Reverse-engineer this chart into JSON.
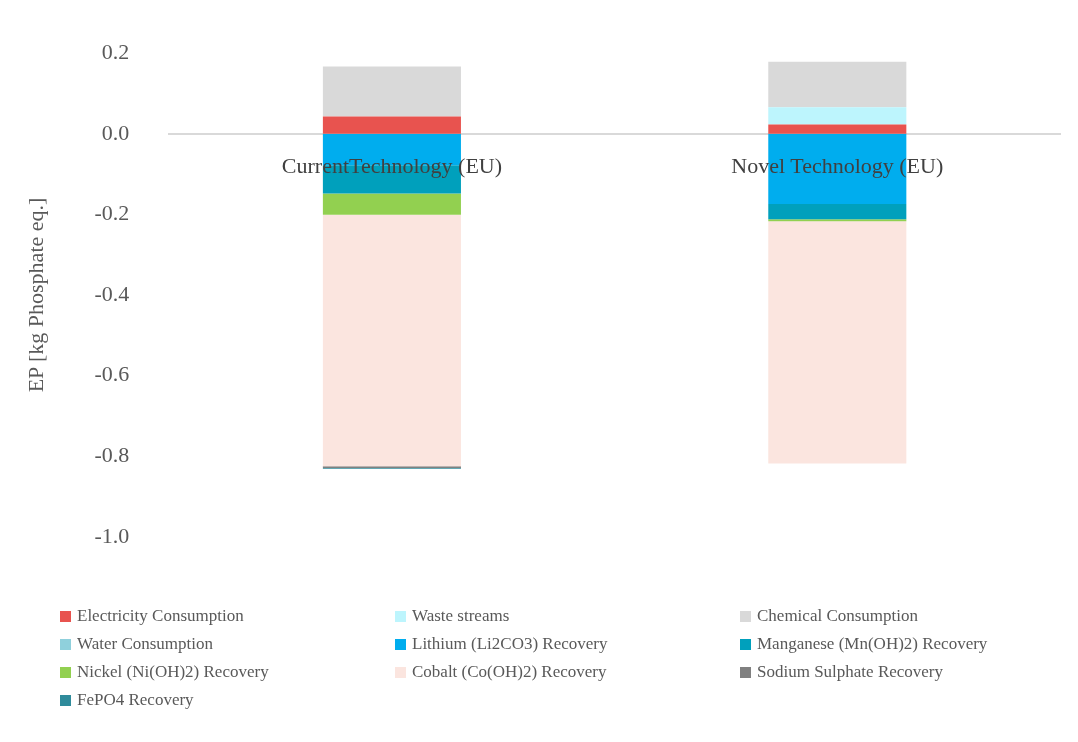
{
  "chart_data": {
    "type": "bar",
    "stacked": true,
    "ylabel": "EP [kg Phosphate eq.]",
    "categories": [
      "CurrentTechnology (EU)",
      "Novel Technology (EU)"
    ],
    "series": [
      {
        "name": "Electricity Consumption",
        "color": "#e8534f",
        "values": [
          0.043,
          0.023
        ]
      },
      {
        "name": "Waste streams",
        "color": "#bdf5fd",
        "values": [
          0,
          0.043
        ]
      },
      {
        "name": "Chemical Consumption",
        "color": "#d9d9d9",
        "values": [
          0.124,
          0.113
        ]
      },
      {
        "name": "Water Consumption",
        "color": "#8fd0dc",
        "values": [
          null,
          null
        ]
      },
      {
        "name": "Lithium (Li2CO3) Recovery",
        "color": "#00adee",
        "values": [
          -0.078,
          -0.174
        ]
      },
      {
        "name": "Manganese (Mn(OH)2) Recovery",
        "color": "#00a0bc",
        "values": [
          -0.07,
          -0.038
        ]
      },
      {
        "name": "Nickel (Ni(OH)2) Recovery",
        "color": "#92d050",
        "values": [
          -0.053,
          -0.005
        ]
      },
      {
        "name": "Cobalt (Co(OH)2) Recovery",
        "color": "#fbe5df",
        "values": [
          -0.624,
          -0.601
        ]
      },
      {
        "name": "Sodium Sulphate Recovery",
        "color": "#808080",
        "values": [
          -0.004,
          0
        ]
      },
      {
        "name": "FePO4 Recovery",
        "color": "#2f8b9b",
        "values": [
          -0.002,
          0
        ]
      }
    ],
    "ylim": [
      -1.0,
      0.2
    ],
    "yticks": [
      {
        "value": -1.0,
        "label": "-1.0"
      },
      -0.8,
      -0.6,
      -0.4,
      -0.2,
      {
        "value": 0,
        "label": "0.0"
      },
      0.2
    ],
    "grid": false,
    "legend": "bottom"
  }
}
